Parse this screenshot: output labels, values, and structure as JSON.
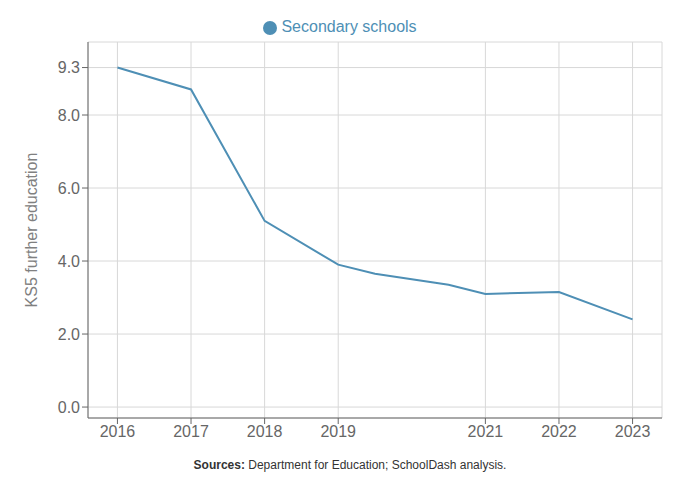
{
  "chart_data": {
    "type": "line",
    "x": [
      2016,
      2017,
      2018,
      2019,
      2019.5,
      2020.5,
      2021,
      2022,
      2023
    ],
    "series": [
      {
        "name": "Secondary schools",
        "color": "#4e8fb5",
        "values": [
          9.3,
          8.7,
          5.1,
          3.9,
          3.65,
          3.35,
          3.1,
          3.15,
          2.4
        ]
      }
    ],
    "ylabel": "KS5 further education",
    "xlim": [
      2015.6,
      2023.4
    ],
    "ylim": [
      -0.3,
      10.0
    ],
    "xticks": [
      2016,
      2017,
      2018,
      2019,
      2021,
      2022,
      2023
    ],
    "yticks": [
      {
        "value": 0.0,
        "label": "0.0"
      },
      {
        "value": 2.0,
        "label": "2.0"
      },
      {
        "value": 4.0,
        "label": "4.0"
      },
      {
        "value": 6.0,
        "label": "6.0"
      },
      {
        "value": 8.0,
        "label": "8.0"
      },
      9.3
    ],
    "grid": true,
    "legend": "top",
    "annotations": [
      "Sources:",
      "Department for Education; SchoolDash analysis."
    ]
  }
}
